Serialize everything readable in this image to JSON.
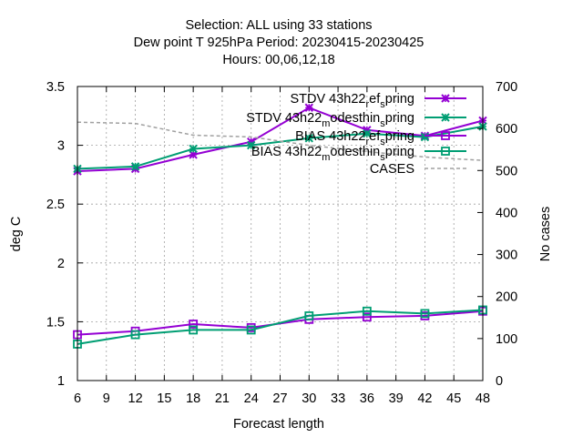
{
  "chart_data": {
    "type": "line",
    "title_lines": [
      "Selection: ALL using     33 stations",
      "Dew point T 925hPa   Period: 20230415-20230425",
      "Hours:  00,06,12,18"
    ],
    "xlabel": "Forecast length",
    "ylabel": "deg C",
    "y2label": "No cases",
    "xlim": [
      6,
      48
    ],
    "xticks": [
      "6",
      "9",
      "12",
      "15",
      "18",
      "21",
      "24",
      "27",
      "30",
      "33",
      "36",
      "39",
      "42",
      "45",
      "48"
    ],
    "ylim": [
      1,
      3.5
    ],
    "yticks": [
      "1",
      "1.5",
      "2",
      "2.5",
      "3",
      "3.5"
    ],
    "y2lim": [
      0,
      700
    ],
    "y2ticks": [
      "0",
      "100",
      "200",
      "300",
      "400",
      "500",
      "600",
      "700"
    ],
    "grid": true,
    "legend_position": "top-right",
    "x": [
      6,
      12,
      18,
      24,
      30,
      36,
      42,
      48
    ],
    "series": [
      {
        "name": "STDV 43h22_ref_spring",
        "legend_parts": [
          "STDV 43h22",
          "r",
          "ef",
          "s",
          "pring"
        ],
        "axis": "y1",
        "color": "#9400d3",
        "marker": "x",
        "values": [
          2.78,
          2.8,
          2.92,
          3.03,
          3.32,
          3.13,
          3.08,
          3.21
        ]
      },
      {
        "name": "STDV 43h22_modesthin_spring",
        "legend_parts": [
          "STDV 43h22",
          "m",
          "odesthin",
          "s",
          "pring"
        ],
        "axis": "y1",
        "color": "#009e73",
        "marker": "x",
        "values": [
          2.8,
          2.82,
          2.97,
          3.0,
          3.06,
          3.1,
          3.07,
          3.16
        ]
      },
      {
        "name": "BIAS 43h22_ref_spring",
        "legend_parts": [
          "BIAS 43h22",
          "r",
          "ef",
          "s",
          "pring"
        ],
        "axis": "y1",
        "color": "#9400d3",
        "marker": "square",
        "values": [
          1.39,
          1.42,
          1.48,
          1.45,
          1.52,
          1.54,
          1.55,
          1.59
        ]
      },
      {
        "name": "BIAS 43h22_modesthin_spring",
        "legend_parts": [
          "BIAS 43h22",
          "m",
          "odesthin",
          "s",
          "pring"
        ],
        "axis": "y1",
        "color": "#009e73",
        "marker": "square",
        "values": [
          1.31,
          1.39,
          1.43,
          1.43,
          1.55,
          1.59,
          1.57,
          1.6
        ]
      },
      {
        "name": "CASES",
        "legend_parts": [
          "CASES"
        ],
        "axis": "y2",
        "color": "#a0a0a0",
        "marker": "none",
        "dashed": true,
        "values": [
          615,
          612,
          584,
          580,
          560,
          545,
          532,
          524
        ]
      }
    ]
  }
}
